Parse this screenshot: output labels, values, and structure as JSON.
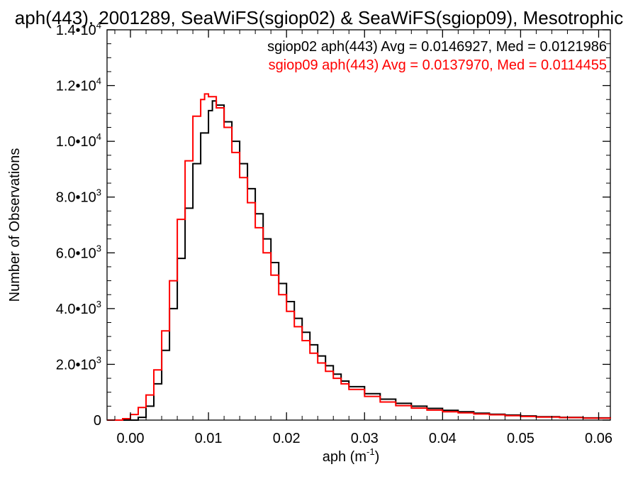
{
  "chart_data": {
    "type": "line",
    "step": true,
    "title": "aph(443), 2001289, SeaWiFS(sgiop02) & SeaWiFS(sgiop09), Mesotrophic",
    "xlabel": "aph (m",
    "xlabel_sup": "-1",
    "xlabel_end": ")",
    "ylabel": "Number of Observations",
    "xlim": [
      -0.003,
      0.0615
    ],
    "ylim": [
      0,
      14000
    ],
    "grid": false,
    "x_ticks": [
      0.0,
      0.01,
      0.02,
      0.03,
      0.04,
      0.05,
      0.06
    ],
    "x_tick_labels": [
      "0.00",
      "0.01",
      "0.02",
      "0.03",
      "0.04",
      "0.05",
      "0.06"
    ],
    "y_ticks": [
      0,
      2000,
      4000,
      6000,
      8000,
      10000,
      12000,
      14000
    ],
    "y_tick_labels": [
      {
        "base": "0",
        "exp": ""
      },
      {
        "base": "2.0•10",
        "exp": "3"
      },
      {
        "base": "4.0•10",
        "exp": "3"
      },
      {
        "base": "6.0•10",
        "exp": "3"
      },
      {
        "base": "8.0•10",
        "exp": "3"
      },
      {
        "base": "1.0•10",
        "exp": "4"
      },
      {
        "base": "1.2•10",
        "exp": "4"
      },
      {
        "base": "1.4•10",
        "exp": "4"
      }
    ],
    "legend_position": "top-right",
    "series": [
      {
        "name": "sgiop02",
        "color": "#000000",
        "label": "sgiop02 aph(443) Avg = 0.0146927, Med = 0.0121986",
        "points": [
          [
            -0.003,
            0
          ],
          [
            0.0,
            0
          ],
          [
            0.001,
            100
          ],
          [
            0.002,
            500
          ],
          [
            0.003,
            1300
          ],
          [
            0.004,
            2500
          ],
          [
            0.005,
            4000
          ],
          [
            0.006,
            5800
          ],
          [
            0.007,
            7600
          ],
          [
            0.008,
            9200
          ],
          [
            0.009,
            10300
          ],
          [
            0.01,
            11100
          ],
          [
            0.0105,
            11450
          ],
          [
            0.011,
            11300
          ],
          [
            0.012,
            10700
          ],
          [
            0.013,
            10000
          ],
          [
            0.014,
            9200
          ],
          [
            0.015,
            8300
          ],
          [
            0.016,
            7400
          ],
          [
            0.017,
            6500
          ],
          [
            0.018,
            5650
          ],
          [
            0.019,
            4900
          ],
          [
            0.02,
            4250
          ],
          [
            0.021,
            3650
          ],
          [
            0.022,
            3150
          ],
          [
            0.023,
            2700
          ],
          [
            0.024,
            2300
          ],
          [
            0.025,
            1950
          ],
          [
            0.026,
            1650
          ],
          [
            0.027,
            1400
          ],
          [
            0.028,
            1200
          ],
          [
            0.03,
            950
          ],
          [
            0.032,
            750
          ],
          [
            0.034,
            600
          ],
          [
            0.036,
            500
          ],
          [
            0.038,
            420
          ],
          [
            0.04,
            350
          ],
          [
            0.042,
            300
          ],
          [
            0.044,
            250
          ],
          [
            0.046,
            210
          ],
          [
            0.048,
            180
          ],
          [
            0.05,
            150
          ],
          [
            0.052,
            120
          ],
          [
            0.055,
            100
          ],
          [
            0.058,
            80
          ],
          [
            0.0615,
            60
          ]
        ]
      },
      {
        "name": "sgiop09",
        "color": "#ff0000",
        "label": "sgiop09 aph(443) Avg = 0.0137970, Med = 0.0114455",
        "points": [
          [
            -0.003,
            0
          ],
          [
            -0.001,
            50
          ],
          [
            0.0,
            200
          ],
          [
            0.001,
            450
          ],
          [
            0.002,
            900
          ],
          [
            0.003,
            1800
          ],
          [
            0.004,
            3200
          ],
          [
            0.005,
            5000
          ],
          [
            0.006,
            7200
          ],
          [
            0.007,
            9300
          ],
          [
            0.008,
            10900
          ],
          [
            0.009,
            11500
          ],
          [
            0.0095,
            11700
          ],
          [
            0.01,
            11600
          ],
          [
            0.011,
            11200
          ],
          [
            0.012,
            10500
          ],
          [
            0.013,
            9600
          ],
          [
            0.014,
            8700
          ],
          [
            0.015,
            7800
          ],
          [
            0.016,
            6900
          ],
          [
            0.017,
            6000
          ],
          [
            0.018,
            5200
          ],
          [
            0.019,
            4500
          ],
          [
            0.02,
            3900
          ],
          [
            0.021,
            3350
          ],
          [
            0.022,
            2850
          ],
          [
            0.023,
            2400
          ],
          [
            0.024,
            2050
          ],
          [
            0.025,
            1750
          ],
          [
            0.026,
            1500
          ],
          [
            0.027,
            1300
          ],
          [
            0.028,
            1100
          ],
          [
            0.03,
            850
          ],
          [
            0.032,
            650
          ],
          [
            0.034,
            520
          ],
          [
            0.036,
            430
          ],
          [
            0.038,
            360
          ],
          [
            0.04,
            300
          ],
          [
            0.042,
            260
          ],
          [
            0.044,
            220
          ],
          [
            0.046,
            190
          ],
          [
            0.048,
            160
          ],
          [
            0.05,
            130
          ],
          [
            0.052,
            110
          ],
          [
            0.055,
            90
          ],
          [
            0.058,
            70
          ],
          [
            0.0615,
            55
          ]
        ]
      }
    ]
  }
}
